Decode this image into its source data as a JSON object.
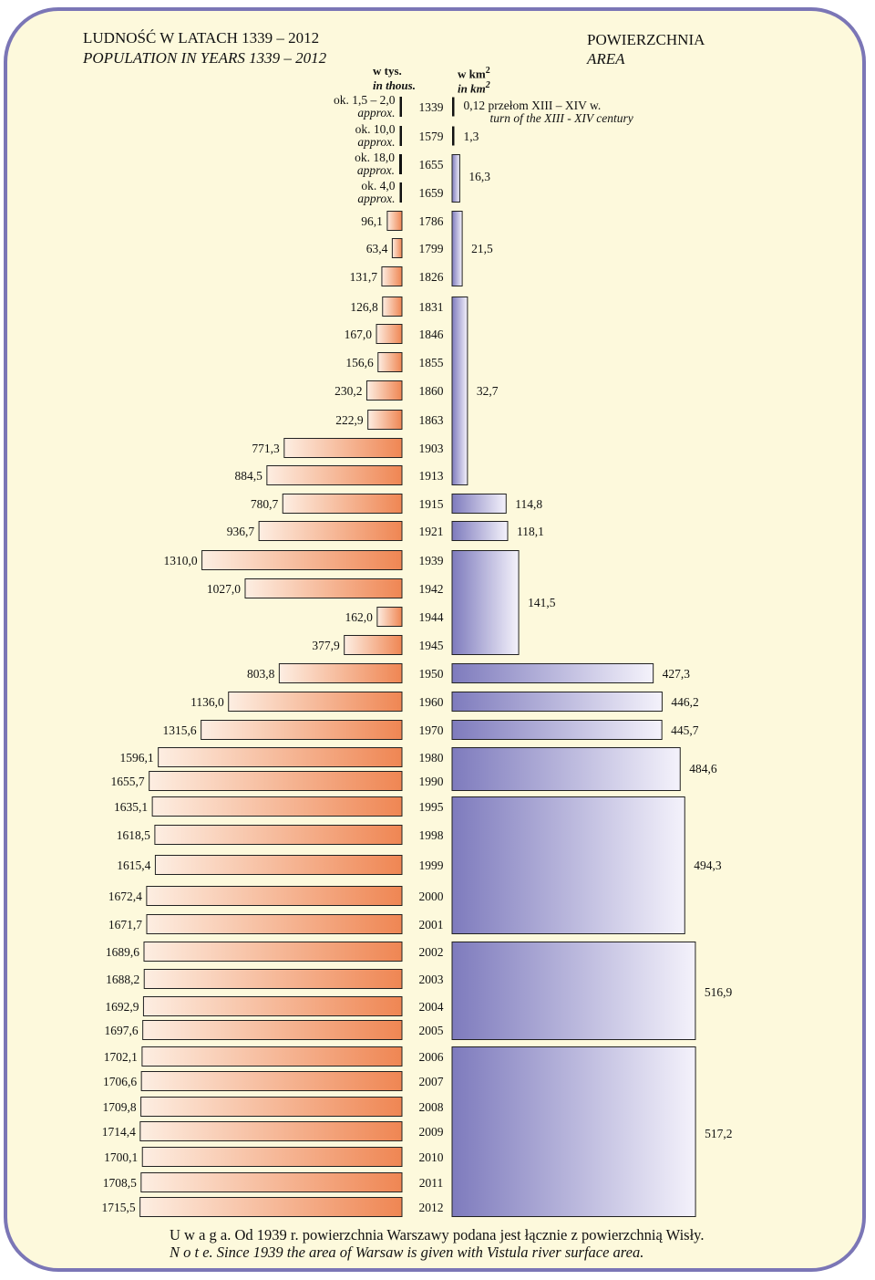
{
  "titles": {
    "population_pl": "LUDNOŚĆ W  LATACH  1339 – 2012",
    "population_en": "POPULATION IN YEARS 1339 – 2012",
    "area_pl": "POWIERZCHNIA",
    "area_en": "AREA"
  },
  "units": {
    "population_pl": "w  tys.",
    "population_en": "in thous.",
    "area_pl": "w km",
    "area_en": "in km",
    "area_sup": "2"
  },
  "note": {
    "pl": "U w a g a. Od 1939 r. powierzchnia Warszawy podana jest łącznie z powierzchnią Wisły.",
    "en": "N o t e. Since 1939 the area of Warsaw is given with Vistula river surface area."
  },
  "colors": {
    "frame": "#7b76b6",
    "background": "#fdf9dc",
    "population_bar_light": "#fdeee2",
    "population_bar_dark": "#ef8653",
    "area_bar_dark": "#7e7bbd",
    "area_bar_light": "#f4f2fb"
  },
  "chart_data": {
    "type": "bar",
    "orientation": "horizontal",
    "layout": "back-to-back",
    "population": {
      "unit": "thousands",
      "rows": [
        {
          "year": "1339",
          "label": "ok. 1,5 – 2,0",
          "sublabel": "approx.",
          "value": 1.75
        },
        {
          "year": "1579",
          "label": "ok. 10,0",
          "sublabel": "approx.",
          "value": 10.0
        },
        {
          "year": "1655",
          "label": "ok. 18,0",
          "sublabel": "approx.",
          "value": 18.0
        },
        {
          "year": "1659",
          "label": "ok. 4,0",
          "sublabel": "approx.",
          "value": 4.0
        },
        {
          "year": "1786",
          "label": "96,1",
          "value": 96.1
        },
        {
          "year": "1799",
          "label": "63,4",
          "value": 63.4
        },
        {
          "year": "1826",
          "label": "131,7",
          "value": 131.7
        },
        {
          "year": "1831",
          "label": "126,8",
          "value": 126.8
        },
        {
          "year": "1846",
          "label": "167,0",
          "value": 167.0
        },
        {
          "year": "1855",
          "label": "156,6",
          "value": 156.6
        },
        {
          "year": "1860",
          "label": "230,2",
          "value": 230.2
        },
        {
          "year": "1863",
          "label": "222,9",
          "value": 222.9
        },
        {
          "year": "1903",
          "label": "771,3",
          "value": 771.3
        },
        {
          "year": "1913",
          "label": "884,5",
          "value": 884.5
        },
        {
          "year": "1915",
          "label": "780,7",
          "value": 780.7
        },
        {
          "year": "1921",
          "label": "936,7",
          "value": 936.7
        },
        {
          "year": "1939",
          "label": "1310,0",
          "value": 1310.0
        },
        {
          "year": "1942",
          "label": "1027,0",
          "value": 1027.0
        },
        {
          "year": "1944",
          "label": "162,0",
          "value": 162.0
        },
        {
          "year": "1945",
          "label": "377,9",
          "value": 377.9
        },
        {
          "year": "1950",
          "label": "803,8",
          "value": 803.8
        },
        {
          "year": "1960",
          "label": "1136,0",
          "value": 1136.0
        },
        {
          "year": "1970",
          "label": "1315,6",
          "value": 1315.6
        },
        {
          "year": "1980",
          "label": "1596,1",
          "value": 1596.1
        },
        {
          "year": "1990",
          "label": "1655,7",
          "value": 1655.7
        },
        {
          "year": "1995",
          "label": "1635,1",
          "value": 1635.1
        },
        {
          "year": "1998",
          "label": "1618,5",
          "value": 1618.5
        },
        {
          "year": "1999",
          "label": "1615,4",
          "value": 1615.4
        },
        {
          "year": "2000",
          "label": "1672,4",
          "value": 1672.4
        },
        {
          "year": "2001",
          "label": "1671,7",
          "value": 1671.7
        },
        {
          "year": "2002",
          "label": "1689,6",
          "value": 1689.6
        },
        {
          "year": "2003",
          "label": "1688,2",
          "value": 1688.2
        },
        {
          "year": "2004",
          "label": "1692,9",
          "value": 1692.9
        },
        {
          "year": "2005",
          "label": "1697,6",
          "value": 1697.6
        },
        {
          "year": "2006",
          "label": "1702,1",
          "value": 1702.1
        },
        {
          "year": "2007",
          "label": "1706,6",
          "value": 1706.6
        },
        {
          "year": "2008",
          "label": "1709,8",
          "value": 1709.8
        },
        {
          "year": "2009",
          "label": "1714,4",
          "value": 1714.4
        },
        {
          "year": "2010",
          "label": "1700,1",
          "value": 1700.1
        },
        {
          "year": "2011",
          "label": "1708,5",
          "value": 1708.5
        },
        {
          "year": "2012",
          "label": "1715,5",
          "value": 1715.5
        }
      ]
    },
    "area": {
      "unit": "km²",
      "segments": [
        {
          "from": "1339",
          "to": "1339",
          "label": "0,12",
          "annotation_pl": "przełom XIII – XIV w.",
          "annotation_en": "turn of the XIII - XIV century",
          "value": 0.12
        },
        {
          "from": "1579",
          "to": "1579",
          "label": "1,3",
          "value": 1.3
        },
        {
          "from": "1655",
          "to": "1659",
          "label": "16,3",
          "value": 16.3
        },
        {
          "from": "1786",
          "to": "1826",
          "label": "21,5",
          "value": 21.5
        },
        {
          "from": "1831",
          "to": "1913",
          "label": "32,7",
          "value": 32.7
        },
        {
          "from": "1915",
          "to": "1915",
          "label": "114,8",
          "value": 114.8
        },
        {
          "from": "1921",
          "to": "1921",
          "label": "118,1",
          "value": 118.1
        },
        {
          "from": "1939",
          "to": "1945",
          "label": "141,5",
          "value": 141.5
        },
        {
          "from": "1950",
          "to": "1950",
          "label": "427,3",
          "value": 427.3
        },
        {
          "from": "1960",
          "to": "1960",
          "label": "446,2",
          "value": 446.2
        },
        {
          "from": "1970",
          "to": "1970",
          "label": "445,7",
          "value": 445.7
        },
        {
          "from": "1980",
          "to": "1990",
          "label": "484,6",
          "value": 484.6
        },
        {
          "from": "1995",
          "to": "2001",
          "label": "494,3",
          "value": 494.3
        },
        {
          "from": "2002",
          "to": "2005",
          "label": "516,9",
          "value": 516.9
        },
        {
          "from": "2006",
          "to": "2012",
          "label": "517,2",
          "value": 517.2
        }
      ]
    }
  }
}
